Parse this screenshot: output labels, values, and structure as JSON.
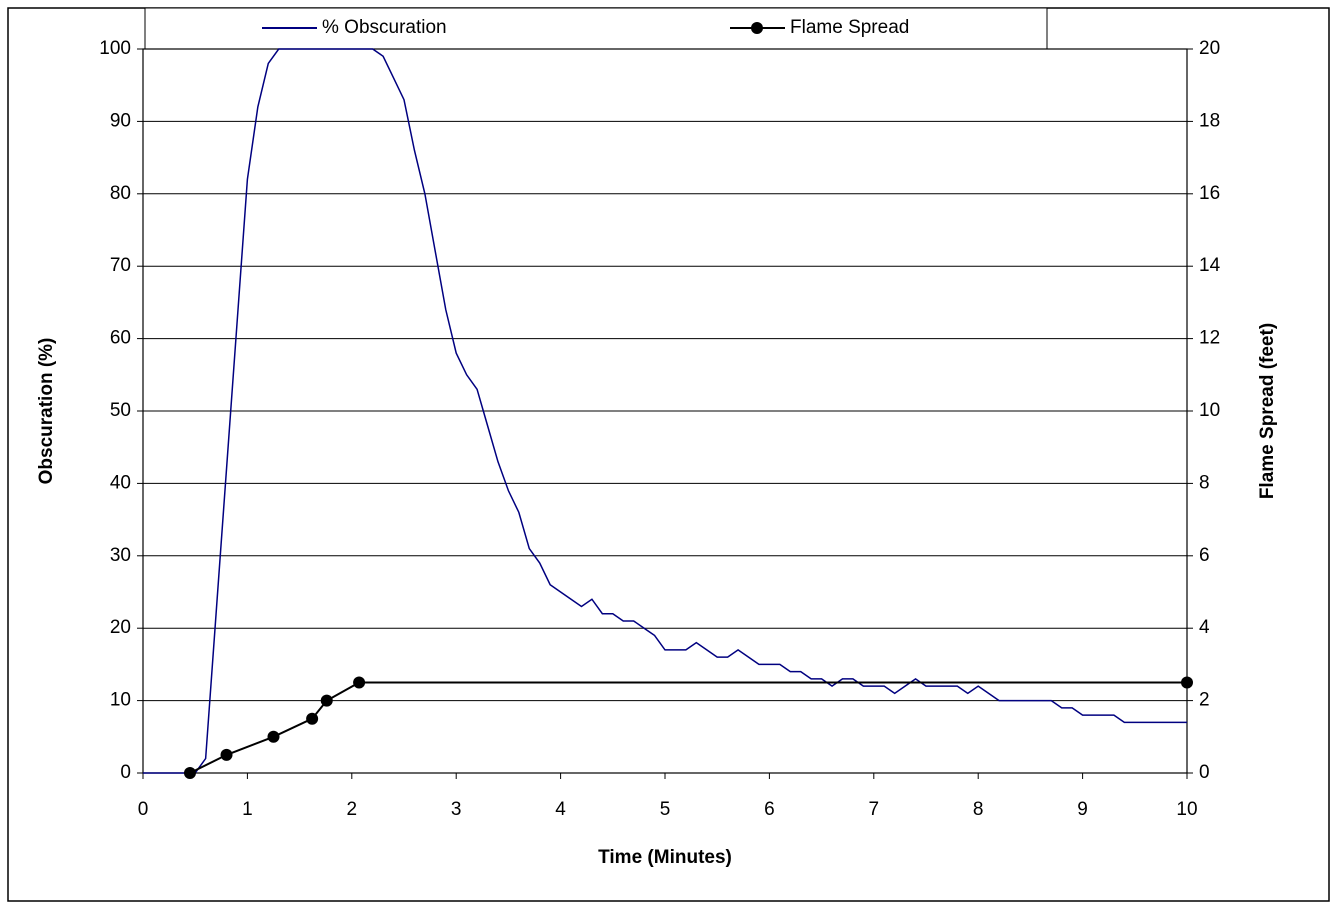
{
  "chart_data": {
    "type": "line",
    "xlabel": "Time (Minutes)",
    "ylabel": "Obscuration (%)",
    "y2label": "Flame Spread (feet)",
    "xlim": [
      0,
      10
    ],
    "xticks": [
      0,
      1,
      2,
      3,
      4,
      5,
      6,
      7,
      8,
      9,
      10
    ],
    "ylim": [
      0,
      100
    ],
    "yticks": [
      0,
      10,
      20,
      30,
      40,
      50,
      60,
      70,
      80,
      90,
      100
    ],
    "y2lim": [
      0,
      20
    ],
    "y2ticks": [
      0,
      2,
      4,
      6,
      8,
      10,
      12,
      14,
      16,
      18,
      20
    ],
    "grid": true,
    "legend": "top",
    "series": [
      {
        "name": "% Obscuration",
        "color": "#000080",
        "x": [
          0,
          0.1,
          0.2,
          0.3,
          0.4,
          0.5,
          0.6,
          0.7,
          0.8,
          0.9,
          1.0,
          1.1,
          1.2,
          1.3,
          1.4,
          1.5,
          1.6,
          1.7,
          1.8,
          1.9,
          2.0,
          2.1,
          2.2,
          2.3,
          2.4,
          2.5,
          2.6,
          2.7,
          2.8,
          2.9,
          3.0,
          3.1,
          3.2,
          3.3,
          3.4,
          3.5,
          3.6,
          3.7,
          3.8,
          3.9,
          4.0,
          4.1,
          4.2,
          4.3,
          4.4,
          4.5,
          4.6,
          4.7,
          4.8,
          4.9,
          5.0,
          5.1,
          5.2,
          5.3,
          5.4,
          5.5,
          5.6,
          5.7,
          5.8,
          5.9,
          6.0,
          6.1,
          6.2,
          6.3,
          6.4,
          6.5,
          6.6,
          6.7,
          6.8,
          6.9,
          7.0,
          7.1,
          7.2,
          7.3,
          7.4,
          7.5,
          7.6,
          7.7,
          7.8,
          7.9,
          8.0,
          8.1,
          8.2,
          8.3,
          8.4,
          8.5,
          8.6,
          8.7,
          8.8,
          8.9,
          9.0,
          9.1,
          9.2,
          9.3,
          9.4,
          9.5,
          9.6,
          9.7,
          9.8,
          9.9,
          10.0
        ],
        "values": [
          0,
          0,
          0,
          0,
          0,
          0,
          2,
          22,
          42,
          62,
          82,
          92,
          98,
          100,
          100,
          100,
          100,
          100,
          100,
          100,
          100,
          100,
          100,
          99,
          96,
          93,
          86,
          80,
          72,
          64,
          58,
          55,
          53,
          48,
          43,
          39,
          36,
          31,
          29,
          26,
          25,
          24,
          23,
          24,
          22,
          22,
          21,
          21,
          20,
          19,
          17,
          17,
          17,
          18,
          17,
          16,
          16,
          17,
          16,
          15,
          15,
          15,
          14,
          14,
          13,
          13,
          12,
          13,
          13,
          12,
          12,
          12,
          11,
          12,
          13,
          12,
          12,
          12,
          12,
          11,
          12,
          11,
          10,
          10,
          10,
          10,
          10,
          10,
          9,
          9,
          8,
          8,
          8,
          8,
          7,
          7,
          7,
          7,
          7,
          7,
          7
        ]
      },
      {
        "name": "Flame Spread",
        "color": "#000000",
        "axis": "y2",
        "x": [
          0.45,
          0.8,
          1.25,
          1.62,
          1.76,
          2.07,
          10
        ],
        "values": [
          0,
          0.5,
          1,
          1.5,
          2,
          2.5,
          2.5
        ]
      }
    ]
  }
}
